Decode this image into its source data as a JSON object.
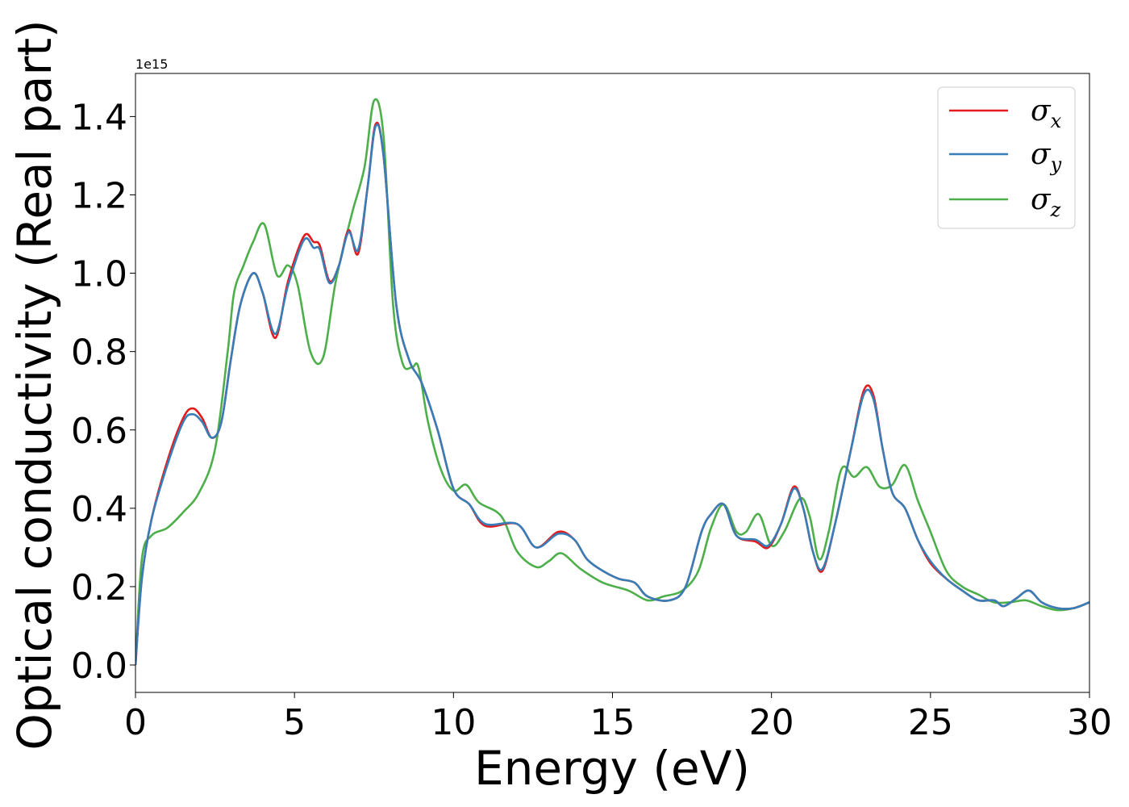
{
  "chart_data": {
    "type": "line",
    "xlabel": "Energy (eV)",
    "ylabel": "Optical conductivity (Real part)",
    "y_offset_label": "1e15",
    "xlim": [
      0,
      30
    ],
    "ylim": [
      -0.07,
      1.51
    ],
    "xticks": [
      0,
      5,
      10,
      15,
      20,
      25,
      30
    ],
    "xtick_labels": [
      "0",
      "5",
      "10",
      "15",
      "20",
      "25",
      "30"
    ],
    "yticks": [
      0.0,
      0.2,
      0.4,
      0.6,
      0.8,
      1.0,
      1.2,
      1.4
    ],
    "ytick_labels": [
      "0.0",
      "0.2",
      "0.4",
      "0.6",
      "0.8",
      "1.0",
      "1.2",
      "1.4"
    ],
    "grid": false,
    "legend_position": "top-right",
    "series": [
      {
        "name": "σx",
        "symbol": "σ",
        "subscript": "x",
        "color": "#e41a1c",
        "x": [
          0,
          0.2,
          0.5,
          1,
          1.5,
          1.8,
          2.1,
          2.4,
          2.7,
          3.0,
          3.3,
          3.7,
          4.0,
          4.4,
          4.8,
          5.3,
          5.6,
          5.8,
          6.1,
          6.4,
          6.7,
          7.0,
          7.3,
          7.55,
          7.8,
          8.2,
          8.6,
          9.0,
          9.5,
          10.0,
          10.5,
          11.0,
          12.0,
          12.6,
          13.3,
          13.8,
          14.2,
          14.7,
          15.2,
          15.7,
          16.1,
          16.8,
          17.3,
          17.8,
          18.1,
          18.5,
          18.9,
          19.5,
          19.9,
          20.3,
          20.7,
          21.0,
          21.3,
          21.6,
          22.0,
          22.5,
          22.9,
          23.2,
          23.5,
          23.8,
          24.2,
          24.6,
          25.0,
          25.5,
          26.0,
          26.5,
          27.0,
          27.3,
          27.7,
          28.1,
          28.5,
          29.0,
          29.5,
          30.0
        ],
        "y": [
          0.0,
          0.22,
          0.37,
          0.52,
          0.63,
          0.655,
          0.63,
          0.58,
          0.62,
          0.78,
          0.92,
          1.0,
          0.95,
          0.835,
          0.98,
          1.095,
          1.08,
          1.07,
          0.98,
          1.02,
          1.11,
          1.05,
          1.22,
          1.38,
          1.3,
          0.92,
          0.78,
          0.72,
          0.6,
          0.45,
          0.41,
          0.355,
          0.36,
          0.3,
          0.34,
          0.32,
          0.27,
          0.24,
          0.22,
          0.21,
          0.175,
          0.165,
          0.2,
          0.34,
          0.385,
          0.41,
          0.33,
          0.315,
          0.3,
          0.36,
          0.455,
          0.4,
          0.29,
          0.24,
          0.36,
          0.55,
          0.7,
          0.69,
          0.55,
          0.44,
          0.4,
          0.32,
          0.26,
          0.22,
          0.19,
          0.165,
          0.165,
          0.15,
          0.17,
          0.19,
          0.16,
          0.145,
          0.145,
          0.16
        ]
      },
      {
        "name": "σy",
        "symbol": "σ",
        "subscript": "y",
        "color": "#377eb8",
        "x": [
          0,
          0.2,
          0.5,
          1,
          1.5,
          1.8,
          2.1,
          2.4,
          2.7,
          3.0,
          3.3,
          3.7,
          4.0,
          4.4,
          4.8,
          5.3,
          5.6,
          5.8,
          6.1,
          6.4,
          6.7,
          7.0,
          7.3,
          7.55,
          7.8,
          8.2,
          8.6,
          9.0,
          9.5,
          10.0,
          10.5,
          11.0,
          12.0,
          12.6,
          13.3,
          13.8,
          14.2,
          14.7,
          15.2,
          15.7,
          16.1,
          16.8,
          17.3,
          17.8,
          18.1,
          18.5,
          18.9,
          19.5,
          19.9,
          20.3,
          20.7,
          21.0,
          21.3,
          21.6,
          22.0,
          22.5,
          22.9,
          23.2,
          23.5,
          23.8,
          24.2,
          24.6,
          25.0,
          25.5,
          26.0,
          26.5,
          27.0,
          27.3,
          27.7,
          28.1,
          28.5,
          29.0,
          29.5,
          30.0
        ],
        "y": [
          0.0,
          0.22,
          0.37,
          0.51,
          0.62,
          0.64,
          0.62,
          0.58,
          0.62,
          0.78,
          0.92,
          1.0,
          0.95,
          0.845,
          0.97,
          1.085,
          1.065,
          1.06,
          0.975,
          1.02,
          1.105,
          1.06,
          1.22,
          1.375,
          1.3,
          0.92,
          0.78,
          0.72,
          0.6,
          0.45,
          0.41,
          0.36,
          0.36,
          0.3,
          0.335,
          0.32,
          0.27,
          0.24,
          0.22,
          0.21,
          0.175,
          0.165,
          0.2,
          0.34,
          0.385,
          0.41,
          0.33,
          0.32,
          0.305,
          0.36,
          0.45,
          0.4,
          0.29,
          0.245,
          0.36,
          0.55,
          0.69,
          0.68,
          0.55,
          0.44,
          0.4,
          0.32,
          0.265,
          0.22,
          0.19,
          0.165,
          0.165,
          0.15,
          0.17,
          0.19,
          0.16,
          0.145,
          0.145,
          0.16
        ]
      },
      {
        "name": "σz",
        "symbol": "σ",
        "subscript": "z",
        "color": "#4daf4a",
        "x": [
          0,
          0.2,
          0.5,
          1,
          1.5,
          2.0,
          2.5,
          2.9,
          3.1,
          3.4,
          3.7,
          4.05,
          4.45,
          4.8,
          5.1,
          5.5,
          5.9,
          6.3,
          6.8,
          7.2,
          7.5,
          7.8,
          8.1,
          8.4,
          8.7,
          8.9,
          9.2,
          9.6,
          10.0,
          10.4,
          10.8,
          11.5,
          12.0,
          12.6,
          13.0,
          13.4,
          14.0,
          14.7,
          15.5,
          16.1,
          16.6,
          17.2,
          17.7,
          18.1,
          18.5,
          18.9,
          19.2,
          19.6,
          20.0,
          20.4,
          20.9,
          21.2,
          21.5,
          21.8,
          22.2,
          22.6,
          23.0,
          23.4,
          23.8,
          24.2,
          24.6,
          25.0,
          25.5,
          26.0,
          26.5,
          27.0,
          27.5,
          28.0,
          28.5,
          29.0,
          29.5,
          30.0
        ],
        "y": [
          0.0,
          0.27,
          0.33,
          0.35,
          0.39,
          0.44,
          0.55,
          0.8,
          0.95,
          1.02,
          1.08,
          1.125,
          0.995,
          1.02,
          0.97,
          0.8,
          0.785,
          0.98,
          1.15,
          1.27,
          1.44,
          1.35,
          0.92,
          0.77,
          0.76,
          0.76,
          0.62,
          0.5,
          0.445,
          0.46,
          0.415,
          0.38,
          0.29,
          0.25,
          0.265,
          0.285,
          0.245,
          0.21,
          0.19,
          0.165,
          0.175,
          0.19,
          0.24,
          0.35,
          0.41,
          0.34,
          0.34,
          0.385,
          0.305,
          0.34,
          0.425,
          0.38,
          0.27,
          0.34,
          0.5,
          0.48,
          0.505,
          0.455,
          0.46,
          0.51,
          0.42,
          0.34,
          0.24,
          0.2,
          0.18,
          0.16,
          0.16,
          0.165,
          0.15,
          0.14,
          0.145,
          0.16
        ]
      }
    ]
  }
}
